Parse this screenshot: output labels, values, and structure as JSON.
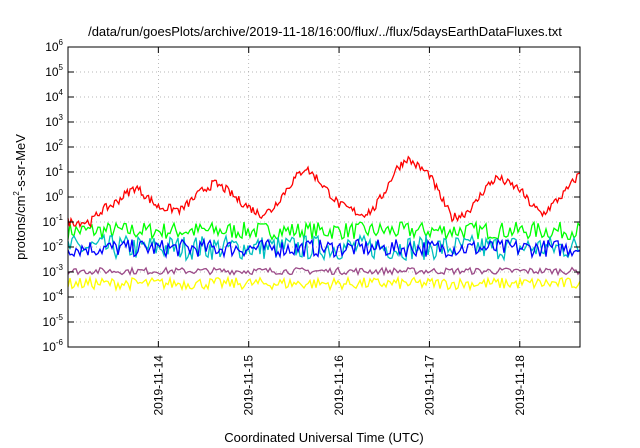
{
  "chart_data": {
    "type": "line",
    "title": "/data/run/goesPlots/archive/2019-11-18/16:00/flux/../flux/5daysEarthDataFluxes.txt",
    "xlabel": "Coordinated Universal Time (UTC)",
    "ylabel": {
      "base": "protons/cm",
      "sup": "2",
      "rest": "-s-sr-MeV"
    },
    "yscale": "log",
    "ylim": [
      1e-06,
      1000000.0
    ],
    "xlim": [
      "2019-11-13T00:00",
      "2019-11-18T16:00"
    ],
    "grid": true,
    "y_ticks": [
      {
        "value": 1e-06,
        "base": "10",
        "exp": "-6"
      },
      {
        "value": 1e-05,
        "base": "10",
        "exp": "-5"
      },
      {
        "value": 0.0001,
        "base": "10",
        "exp": "-4"
      },
      {
        "value": 0.001,
        "base": "10",
        "exp": "-3"
      },
      {
        "value": 0.01,
        "base": "10",
        "exp": "-2"
      },
      {
        "value": 0.1,
        "base": "10",
        "exp": "-1"
      },
      {
        "value": 1.0,
        "base": "10",
        "exp": "0"
      },
      {
        "value": 10.0,
        "base": "10",
        "exp": "1"
      },
      {
        "value": 100.0,
        "base": "10",
        "exp": "2"
      },
      {
        "value": 1000.0,
        "base": "10",
        "exp": "3"
      },
      {
        "value": 10000.0,
        "base": "10",
        "exp": "4"
      },
      {
        "value": 100000.0,
        "base": "10",
        "exp": "5"
      },
      {
        "value": 1000000.0,
        "base": "10",
        "exp": "6"
      }
    ],
    "x_ticks": [
      "2019-11-14",
      "2019-11-15",
      "2019-11-16",
      "2019-11-17",
      "2019-11-18"
    ],
    "series": [
      {
        "color": "#ff0000",
        "x": [
          "2019-11-13T00:00",
          "2019-11-13T06:00",
          "2019-11-13T09:00",
          "2019-11-13T12:00",
          "2019-11-13T15:00",
          "2019-11-13T18:00",
          "2019-11-13T21:00",
          "2019-11-14T00:00",
          "2019-11-14T06:00",
          "2019-11-14T12:00",
          "2019-11-14T15:00",
          "2019-11-14T18:00",
          "2019-11-14T21:00",
          "2019-11-15T00:00",
          "2019-11-15T03:00",
          "2019-11-15T06:00",
          "2019-11-15T12:00",
          "2019-11-15T15:00",
          "2019-11-15T18:00",
          "2019-11-16T00:00",
          "2019-11-16T06:00",
          "2019-11-16T09:00",
          "2019-11-16T12:00",
          "2019-11-16T15:00",
          "2019-11-16T18:00",
          "2019-11-17T00:00",
          "2019-11-17T03:00",
          "2019-11-17T06:00",
          "2019-11-17T09:00",
          "2019-11-17T12:00",
          "2019-11-17T15:00",
          "2019-11-17T18:00",
          "2019-11-18T00:00",
          "2019-11-18T03:00",
          "2019-11-18T06:00",
          "2019-11-18T12:00",
          "2019-11-18T16:00"
        ],
        "values": [
          0.1,
          0.1,
          0.3,
          0.5,
          1.2,
          2.5,
          1.0,
          0.4,
          0.3,
          2.0,
          3.5,
          2.0,
          0.8,
          0.4,
          0.2,
          0.3,
          5.0,
          15,
          6.0,
          0.5,
          0.2,
          0.3,
          1.5,
          12,
          35,
          8.0,
          1.0,
          0.15,
          0.2,
          0.5,
          2.5,
          6.0,
          2.0,
          0.5,
          0.2,
          1.5,
          9.0
        ]
      },
      {
        "color": "#00ff00",
        "values_range": [
          0.02,
          0.1
        ]
      },
      {
        "color": "#00bfbf",
        "values_range": [
          0.003,
          0.03
        ]
      },
      {
        "color": "#0000ff",
        "values_range": [
          0.004,
          0.02
        ]
      },
      {
        "color": "#9b4a88",
        "values_range": [
          0.0008,
          0.0015
        ]
      },
      {
        "color": "#ffff00",
        "values_range": [
          0.0002,
          0.0006
        ]
      }
    ]
  }
}
